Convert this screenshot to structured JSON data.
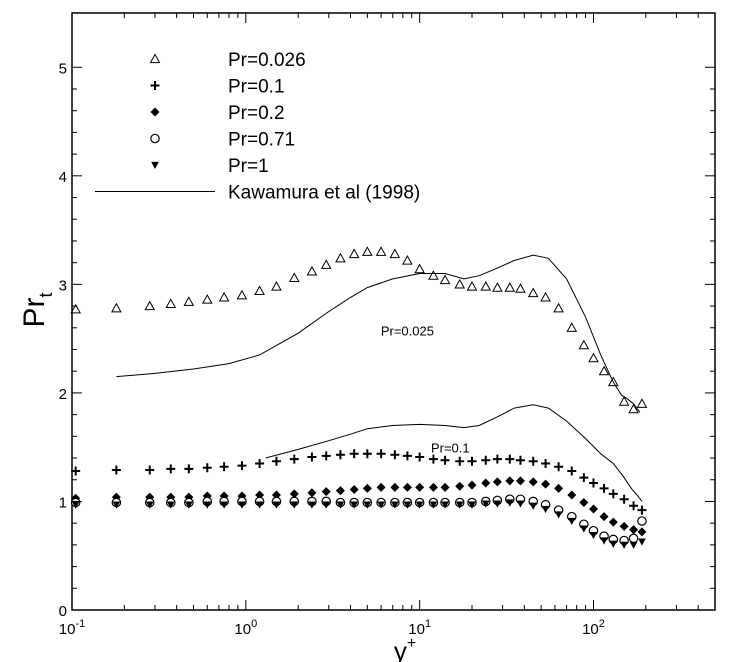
{
  "chart_data": {
    "type": "scatter",
    "xscale": "log",
    "xlim": [
      0.1,
      500
    ],
    "ylim": [
      0,
      5.5
    ],
    "grid": false,
    "legend_position": "top-left",
    "xlabel": "y",
    "xlabel_sup": "+",
    "ylabel": "Pr",
    "ylabel_sub": "t",
    "x_ticks": [
      {
        "value": 0.1,
        "base": "10",
        "exp": "-1"
      },
      {
        "value": 1,
        "base": "10",
        "exp": "0"
      },
      {
        "value": 10,
        "base": "10",
        "exp": "1"
      },
      {
        "value": 100,
        "base": "10",
        "exp": "2"
      }
    ],
    "y_ticks": [
      0,
      1,
      2,
      3,
      4,
      5
    ],
    "y_tick_labels": [
      "0",
      "1",
      "2",
      "3",
      "4",
      "5"
    ],
    "annotations": [
      {
        "text": "Pr=0.025",
        "x": 8.5,
        "y": 2.53
      },
      {
        "text": "Pr=0.1",
        "x": 15,
        "y": 1.45
      }
    ],
    "series": [
      {
        "name": "Pr=0.026",
        "marker": "triangle-open",
        "x": [
          0.105,
          0.18,
          0.28,
          0.37,
          0.47,
          0.6,
          0.75,
          0.95,
          1.2,
          1.5,
          1.9,
          2.4,
          2.9,
          3.5,
          4.2,
          5.0,
          6.0,
          7.2,
          8.5,
          10,
          12,
          14,
          17,
          20,
          24,
          28,
          33,
          38,
          45,
          53,
          63,
          75,
          88,
          100,
          115,
          130,
          150,
          170,
          190
        ],
        "y": [
          2.77,
          2.78,
          2.8,
          2.82,
          2.84,
          2.86,
          2.88,
          2.9,
          2.94,
          2.98,
          3.06,
          3.12,
          3.18,
          3.24,
          3.28,
          3.3,
          3.3,
          3.28,
          3.22,
          3.14,
          3.08,
          3.04,
          3.0,
          2.98,
          2.98,
          2.97,
          2.97,
          2.96,
          2.92,
          2.88,
          2.78,
          2.6,
          2.44,
          2.32,
          2.2,
          2.1,
          1.92,
          1.85,
          1.9
        ]
      },
      {
        "name": "Pr=0.1",
        "marker": "plus",
        "x": [
          0.105,
          0.18,
          0.28,
          0.37,
          0.47,
          0.6,
          0.75,
          0.95,
          1.2,
          1.5,
          1.9,
          2.4,
          2.9,
          3.5,
          4.2,
          5.0,
          6.0,
          7.2,
          8.5,
          10,
          12,
          14,
          17,
          20,
          24,
          28,
          33,
          38,
          45,
          53,
          63,
          75,
          88,
          100,
          115,
          130,
          150,
          170,
          190
        ],
        "y": [
          1.28,
          1.29,
          1.29,
          1.3,
          1.3,
          1.31,
          1.32,
          1.33,
          1.35,
          1.37,
          1.39,
          1.41,
          1.42,
          1.43,
          1.44,
          1.44,
          1.44,
          1.43,
          1.42,
          1.41,
          1.39,
          1.38,
          1.37,
          1.37,
          1.38,
          1.39,
          1.39,
          1.38,
          1.37,
          1.35,
          1.32,
          1.28,
          1.22,
          1.17,
          1.12,
          1.07,
          1.02,
          0.96,
          0.92
        ]
      },
      {
        "name": "Pr=0.2",
        "marker": "diamond-filled",
        "x": [
          0.105,
          0.18,
          0.28,
          0.37,
          0.47,
          0.6,
          0.75,
          0.95,
          1.2,
          1.5,
          1.9,
          2.4,
          2.9,
          3.5,
          4.2,
          5.0,
          6.0,
          7.2,
          8.5,
          10,
          12,
          14,
          17,
          20,
          24,
          28,
          33,
          38,
          45,
          53,
          63,
          75,
          88,
          100,
          115,
          130,
          150,
          170,
          190
        ],
        "y": [
          1.03,
          1.04,
          1.04,
          1.04,
          1.04,
          1.05,
          1.05,
          1.05,
          1.06,
          1.06,
          1.07,
          1.08,
          1.09,
          1.1,
          1.11,
          1.12,
          1.13,
          1.13,
          1.13,
          1.13,
          1.13,
          1.13,
          1.14,
          1.15,
          1.17,
          1.18,
          1.19,
          1.19,
          1.18,
          1.16,
          1.12,
          1.06,
          0.99,
          0.93,
          0.86,
          0.81,
          0.77,
          0.74,
          0.72
        ]
      },
      {
        "name": "Pr=0.71",
        "marker": "circle-open",
        "x": [
          0.105,
          0.18,
          0.28,
          0.37,
          0.47,
          0.6,
          0.75,
          0.95,
          1.2,
          1.5,
          1.9,
          2.4,
          2.9,
          3.5,
          4.2,
          5.0,
          6.0,
          7.2,
          8.5,
          10,
          12,
          14,
          17,
          20,
          24,
          28,
          33,
          38,
          45,
          53,
          63,
          75,
          88,
          100,
          115,
          130,
          150,
          170,
          190
        ],
        "y": [
          0.99,
          0.99,
          0.99,
          0.99,
          0.99,
          1.0,
          1.0,
          1.0,
          1.0,
          1.0,
          1.0,
          1.0,
          1.0,
          0.99,
          0.99,
          0.99,
          0.99,
          0.99,
          0.99,
          0.99,
          0.99,
          0.99,
          0.99,
          0.99,
          1.0,
          1.01,
          1.02,
          1.02,
          1.0,
          0.97,
          0.92,
          0.86,
          0.79,
          0.73,
          0.68,
          0.65,
          0.64,
          0.66,
          0.82
        ]
      },
      {
        "name": "Pr=1",
        "marker": "triangle-down-filled",
        "x": [
          0.105,
          0.18,
          0.28,
          0.37,
          0.47,
          0.6,
          0.75,
          0.95,
          1.2,
          1.5,
          1.9,
          2.4,
          2.9,
          3.5,
          4.2,
          5.0,
          6.0,
          7.2,
          8.5,
          10,
          12,
          14,
          17,
          20,
          24,
          28,
          33,
          38,
          45,
          53,
          63,
          75,
          88,
          100,
          115,
          130,
          150,
          170,
          190
        ],
        "y": [
          0.97,
          0.97,
          0.97,
          0.97,
          0.97,
          0.97,
          0.97,
          0.97,
          0.97,
          0.97,
          0.97,
          0.97,
          0.97,
          0.97,
          0.97,
          0.97,
          0.97,
          0.97,
          0.97,
          0.97,
          0.97,
          0.97,
          0.97,
          0.97,
          0.98,
          0.98,
          0.99,
          0.98,
          0.96,
          0.93,
          0.88,
          0.82,
          0.75,
          0.69,
          0.64,
          0.61,
          0.6,
          0.6,
          0.63
        ]
      },
      {
        "name": "Kawamura et al (1998)",
        "marker": "line",
        "segments": [
          {
            "x": [
              0.18,
              0.3,
              0.5,
              0.8,
              1.2,
              2,
              3,
              4,
              5,
              7,
              10,
              14,
              18,
              22,
              28,
              35,
              45,
              55,
              70,
              90,
              110,
              130,
              145,
              155,
              170,
              185
            ],
            "y": [
              2.15,
              2.18,
              2.22,
              2.27,
              2.35,
              2.55,
              2.75,
              2.88,
              2.97,
              3.05,
              3.1,
              3.1,
              3.05,
              3.08,
              3.15,
              3.22,
              3.27,
              3.24,
              3.05,
              2.7,
              2.35,
              2.1,
              1.98,
              1.95,
              1.9,
              1.82
            ]
          },
          {
            "x": [
              1.3,
              2,
              3,
              4,
              5,
              7,
              10,
              14,
              18,
              22,
              28,
              35,
              45,
              55,
              70,
              90,
              110,
              130,
              150,
              165,
              180,
              190
            ],
            "y": [
              1.4,
              1.48,
              1.56,
              1.62,
              1.67,
              1.7,
              1.71,
              1.7,
              1.68,
              1.7,
              1.78,
              1.86,
              1.89,
              1.86,
              1.74,
              1.58,
              1.44,
              1.35,
              1.22,
              1.12,
              1.05,
              1.0
            ]
          }
        ]
      }
    ]
  }
}
